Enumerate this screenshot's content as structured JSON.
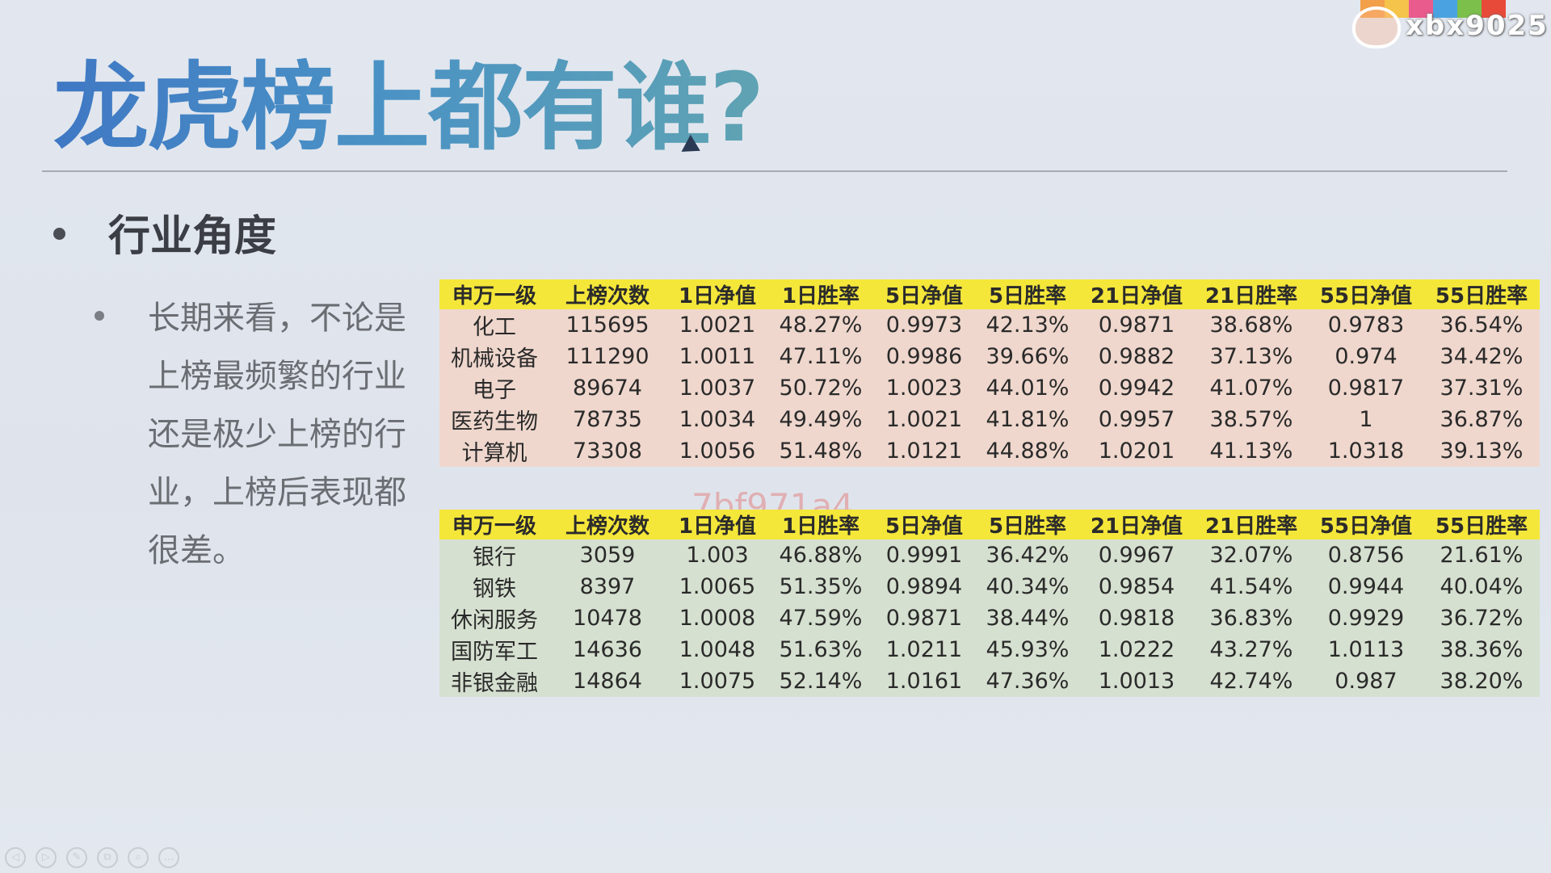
{
  "slide": {
    "title": "龙虎榜上都有谁?",
    "bullet_1": "行业角度",
    "bullet_2": "长期来看，不论是上榜最频繁的行业还是极少上榜的行业，上榜后表现都很差。"
  },
  "table_headers": [
    "申万一级",
    "上榜次数",
    "1日净值",
    "1日胜率",
    "5日净值",
    "5日胜率",
    "21日净值",
    "21日胜率",
    "55日净值",
    "55日胜率"
  ],
  "table_top": {
    "rows": [
      [
        "化工",
        "115695",
        "1.0021",
        "48.27%",
        "0.9973",
        "42.13%",
        "0.9871",
        "38.68%",
        "0.9783",
        "36.54%"
      ],
      [
        "机械设备",
        "111290",
        "1.0011",
        "47.11%",
        "0.9986",
        "39.66%",
        "0.9882",
        "37.13%",
        "0.974",
        "34.42%"
      ],
      [
        "电子",
        "89674",
        "1.0037",
        "50.72%",
        "1.0023",
        "44.01%",
        "0.9942",
        "41.07%",
        "0.9817",
        "37.31%"
      ],
      [
        "医药生物",
        "78735",
        "1.0034",
        "49.49%",
        "1.0021",
        "41.81%",
        "0.9957",
        "38.57%",
        "1",
        "36.87%"
      ],
      [
        "计算机",
        "73308",
        "1.0056",
        "51.48%",
        "1.0121",
        "44.88%",
        "1.0201",
        "41.13%",
        "1.0318",
        "39.13%"
      ]
    ]
  },
  "table_bottom": {
    "rows": [
      [
        "银行",
        "3059",
        "1.003",
        "46.88%",
        "0.9991",
        "36.42%",
        "0.9967",
        "32.07%",
        "0.8756",
        "21.61%"
      ],
      [
        "钢铁",
        "8397",
        "1.0065",
        "51.35%",
        "0.9894",
        "40.34%",
        "0.9854",
        "41.54%",
        "0.9944",
        "40.04%"
      ],
      [
        "休闲服务",
        "10478",
        "1.0008",
        "47.59%",
        "0.9871",
        "38.44%",
        "0.9818",
        "36.83%",
        "0.9929",
        "36.72%"
      ],
      [
        "国防军工",
        "14636",
        "1.0048",
        "51.63%",
        "1.0211",
        "45.93%",
        "1.0222",
        "43.27%",
        "1.0113",
        "38.36%"
      ],
      [
        "非银金融",
        "14864",
        "1.0075",
        "52.14%",
        "1.0161",
        "47.36%",
        "1.0013",
        "42.74%",
        "0.987",
        "38.20%"
      ]
    ]
  },
  "watermark": "7bf971a4",
  "brand": {
    "handle": "xbx9025",
    "colors": [
      "#f2a04a",
      "#f5c44a",
      "#e95b8c",
      "#4aa3e0",
      "#7cc04b",
      "#e84a3a"
    ]
  },
  "player_controls": [
    "prev-icon",
    "next-icon",
    "pen-icon",
    "copy-icon",
    "zoom-icon",
    "more-icon"
  ]
}
